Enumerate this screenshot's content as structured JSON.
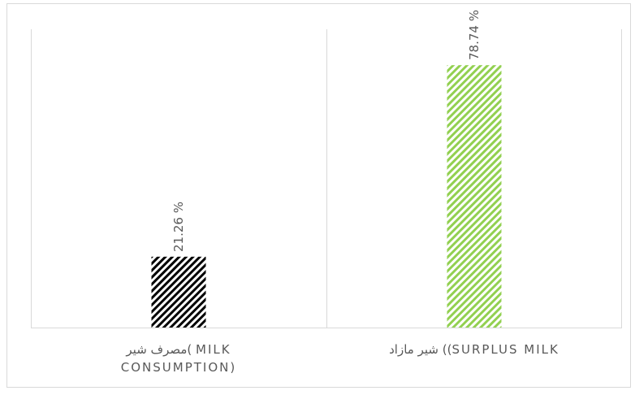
{
  "chart_data": {
    "type": "bar",
    "categories": [
      "مصرف شیر( MILK CONSUMPTION)",
      "شیر مازاد ((SURPLUS MILK"
    ],
    "category_lines": [
      [
        "مصرف شیر( MILK",
        "CONSUMPTION)"
      ],
      [
        "شیر مازاد ((SURPLUS MILK"
      ]
    ],
    "values": [
      21.26,
      78.74
    ],
    "data_labels": [
      "21.26 %",
      "78.74 %"
    ],
    "bar_patterns": [
      "black-diagonal-stripes",
      "green-diagonal-stripes"
    ],
    "colors": {
      "bar1": "#000000",
      "bar2": "#92d050",
      "text": "#595959",
      "gridline": "#d9d9d9"
    },
    "ylim": [
      0,
      100
    ],
    "grid": false,
    "legend": "none",
    "title": "",
    "xlabel": "",
    "ylabel": ""
  }
}
